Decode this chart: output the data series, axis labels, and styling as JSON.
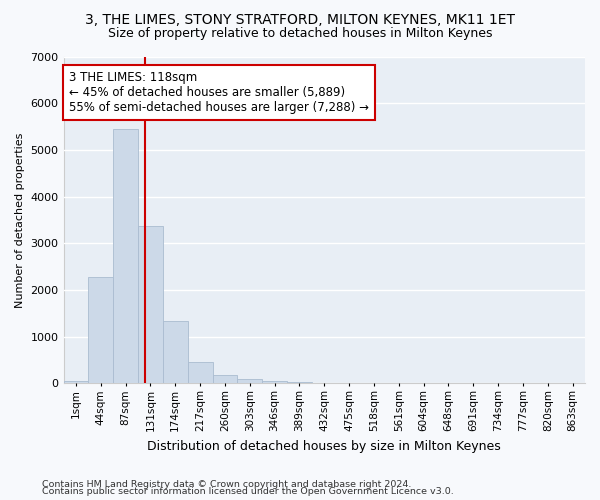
{
  "title": "3, THE LIMES, STONY STRATFORD, MILTON KEYNES, MK11 1ET",
  "subtitle": "Size of property relative to detached houses in Milton Keynes",
  "xlabel": "Distribution of detached houses by size in Milton Keynes",
  "ylabel": "Number of detached properties",
  "footnote1": "Contains HM Land Registry data © Crown copyright and database right 2024.",
  "footnote2": "Contains public sector information licensed under the Open Government Licence v3.0.",
  "bar_labels": [
    "1sqm",
    "44sqm",
    "87sqm",
    "131sqm",
    "174sqm",
    "217sqm",
    "260sqm",
    "303sqm",
    "346sqm",
    "389sqm",
    "432sqm",
    "475sqm",
    "518sqm",
    "561sqm",
    "604sqm",
    "648sqm",
    "691sqm",
    "734sqm",
    "777sqm",
    "820sqm",
    "863sqm"
  ],
  "bar_values": [
    60,
    2270,
    5450,
    3380,
    1340,
    450,
    180,
    105,
    55,
    30,
    10,
    5,
    2,
    1,
    0,
    0,
    0,
    0,
    0,
    0,
    0
  ],
  "bar_color": "#ccd9e8",
  "bar_edgecolor": "#aabcd0",
  "ylim": [
    0,
    7000
  ],
  "yticks": [
    0,
    1000,
    2000,
    3000,
    4000,
    5000,
    6000,
    7000
  ],
  "vline_x": 2.78,
  "vline_color": "#cc0000",
  "annotation_text": "3 THE LIMES: 118sqm\n← 45% of detached houses are smaller (5,889)\n55% of semi-detached houses are larger (7,288) →",
  "annotation_box_color": "#ffffff",
  "annotation_box_edgecolor": "#cc0000",
  "background_color": "#f7f9fc",
  "plot_bg_color": "#e8eef5",
  "grid_color": "#ffffff",
  "title_fontsize": 10,
  "subtitle_fontsize": 9,
  "xlabel_fontsize": 9,
  "ylabel_fontsize": 8,
  "tick_fontsize": 7.5,
  "annotation_fontsize": 8.5,
  "footnote_fontsize": 6.8
}
